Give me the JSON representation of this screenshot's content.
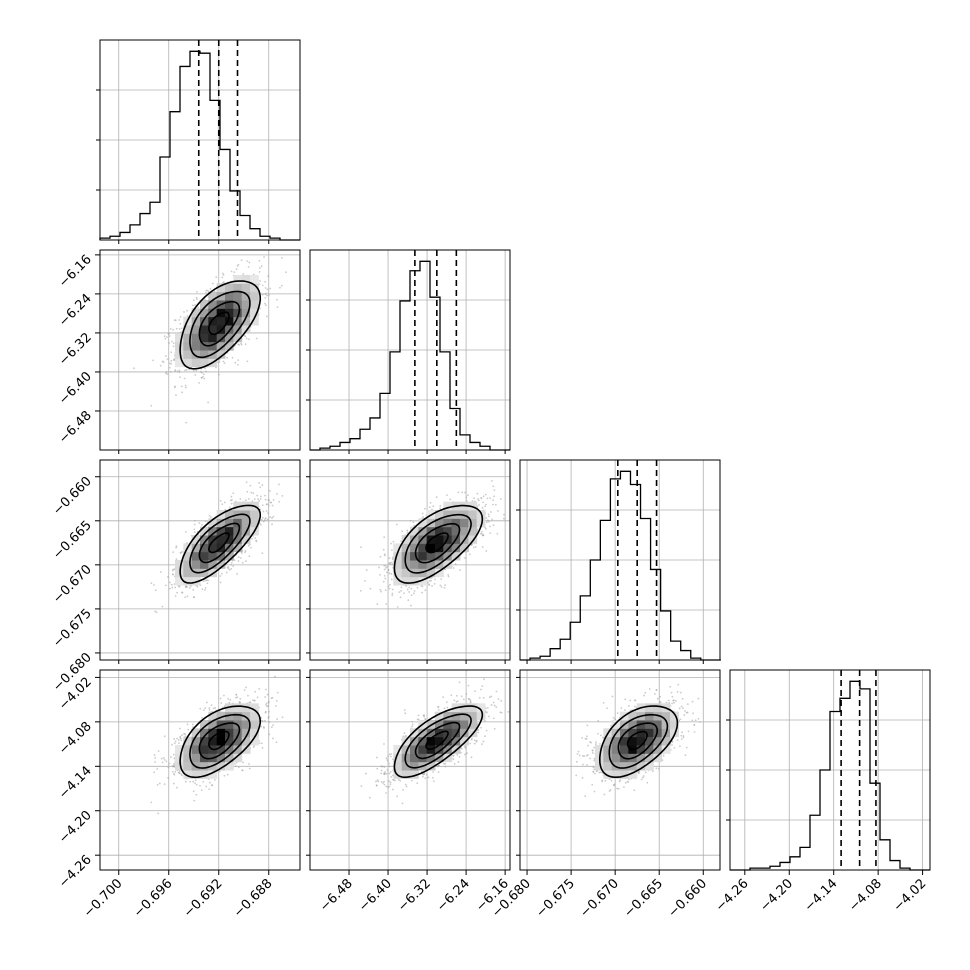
{
  "chart_data": {
    "type": "corner",
    "title": "",
    "parameters": [
      {
        "id": "p0",
        "label": "",
        "axis_range": [
          -0.7015,
          -0.6855
        ],
        "ticks": [
          "−0.700",
          "−0.696",
          "−0.692",
          "−0.688"
        ],
        "tick_values": [
          -0.7,
          -0.696,
          -0.692,
          -0.688
        ],
        "median": -0.692,
        "q16": -0.6936,
        "q84": -0.6905,
        "mean": -0.692,
        "sd": 0.0016,
        "histogram": {
          "edges_start": -0.7015,
          "bin_width": 0.0008,
          "counts": [
            1,
            2,
            4,
            8,
            14,
            20,
            44,
            68,
            92,
            100,
            99,
            74,
            48,
            26,
            13,
            6,
            2,
            1,
            0,
            0
          ]
        }
      },
      {
        "id": "p1",
        "label": "",
        "axis_range": [
          -6.56,
          -6.15
        ],
        "ticks": [
          "−6.48",
          "−6.40",
          "−6.32",
          "−6.24",
          "−6.16"
        ],
        "tick_values": [
          -6.48,
          -6.4,
          -6.32,
          -6.24,
          -6.16
        ],
        "median": -6.3,
        "q16": -6.345,
        "q84": -6.26,
        "mean": -6.3,
        "sd": 0.045,
        "histogram": {
          "edges_start": -6.56,
          "bin_width": 0.0205,
          "counts": [
            0,
            1,
            2,
            4,
            6,
            11,
            17,
            30,
            52,
            79,
            95,
            100,
            81,
            52,
            22,
            8,
            4,
            2,
            0,
            0
          ]
        }
      },
      {
        "id": "p2",
        "label": "",
        "axis_range": [
          -0.6808,
          -0.6581
        ],
        "ticks": [
          "−0.680",
          "−0.675",
          "−0.670",
          "−0.665",
          "−0.660"
        ],
        "tick_values": [
          -0.68,
          -0.675,
          -0.67,
          -0.665,
          -0.66
        ],
        "median": -0.6675,
        "q16": -0.6697,
        "q84": -0.6653,
        "mean": -0.6675,
        "sd": 0.0022,
        "histogram": {
          "edges_start": -0.6808,
          "bin_width": 0.00114,
          "counts": [
            0,
            1,
            2,
            6,
            11,
            20,
            34,
            53,
            74,
            96,
            100,
            93,
            75,
            48,
            26,
            10,
            5,
            1,
            0,
            0
          ]
        }
      },
      {
        "id": "p3",
        "label": "",
        "axis_range": [
          -4.28,
          -4.01
        ],
        "ticks": [
          "−4.26",
          "−4.20",
          "−4.14",
          "−4.08",
          "−4.02"
        ],
        "tick_values": [
          -4.26,
          -4.2,
          -4.14,
          -4.08,
          -4.02
        ],
        "median": -4.105,
        "q16": -4.13,
        "q84": -4.083,
        "mean": -4.105,
        "sd": 0.024,
        "histogram": {
          "edges_start": -4.28,
          "bin_width": 0.0135,
          "counts": [
            0,
            0,
            1,
            1,
            2,
            4,
            7,
            12,
            29,
            53,
            84,
            91,
            100,
            96,
            46,
            16,
            5,
            1,
            0,
            0
          ]
        }
      }
    ],
    "pairs": [
      {
        "x": "p0",
        "y": "p1",
        "correlation": 0.58
      },
      {
        "x": "p0",
        "y": "p2",
        "correlation": 0.72
      },
      {
        "x": "p1",
        "y": "p2",
        "correlation": 0.62
      },
      {
        "x": "p0",
        "y": "p3",
        "correlation": 0.55
      },
      {
        "x": "p1",
        "y": "p3",
        "correlation": 0.72
      },
      {
        "x": "p2",
        "y": "p3",
        "correlation": 0.5
      }
    ],
    "contour_levels_sigma": [
      0.5,
      1.0,
      1.5,
      2.0
    ],
    "quantile_lines": "dashed",
    "grid": true,
    "legend": "none"
  },
  "colors": {
    "frame": "#000000",
    "grid": "#b0b0b0",
    "contour": "#000000",
    "scatter": "#a0a0a0",
    "density_dark": "#000000"
  }
}
